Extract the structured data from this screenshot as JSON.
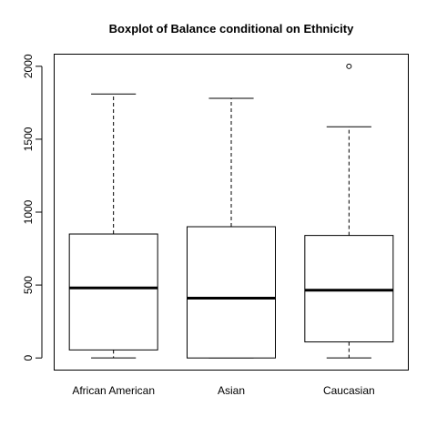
{
  "chart_data": {
    "type": "boxplot",
    "title": "Boxplot of Balance conditional on Ethnicity",
    "xlabel": "",
    "ylabel": "",
    "categories": [
      "African American",
      "Asian",
      "Caucasian"
    ],
    "boxes": [
      {
        "whisker_low": 0,
        "q1": 55,
        "median": 480,
        "q3": 850,
        "whisker_high": 1810,
        "outliers": []
      },
      {
        "whisker_low": 0,
        "q1": 0,
        "median": 410,
        "q3": 900,
        "whisker_high": 1780,
        "outliers": []
      },
      {
        "whisker_low": 0,
        "q1": 110,
        "median": 465,
        "q3": 840,
        "whisker_high": 1585,
        "outliers": [
          2000
        ]
      }
    ],
    "yticks": [
      0,
      500,
      1000,
      1500,
      2000
    ],
    "ytick_labels": [
      "0",
      "500",
      "1000",
      "1500",
      "2000"
    ],
    "ylim": [
      -80,
      2080
    ],
    "grid": false,
    "legend": "none"
  }
}
